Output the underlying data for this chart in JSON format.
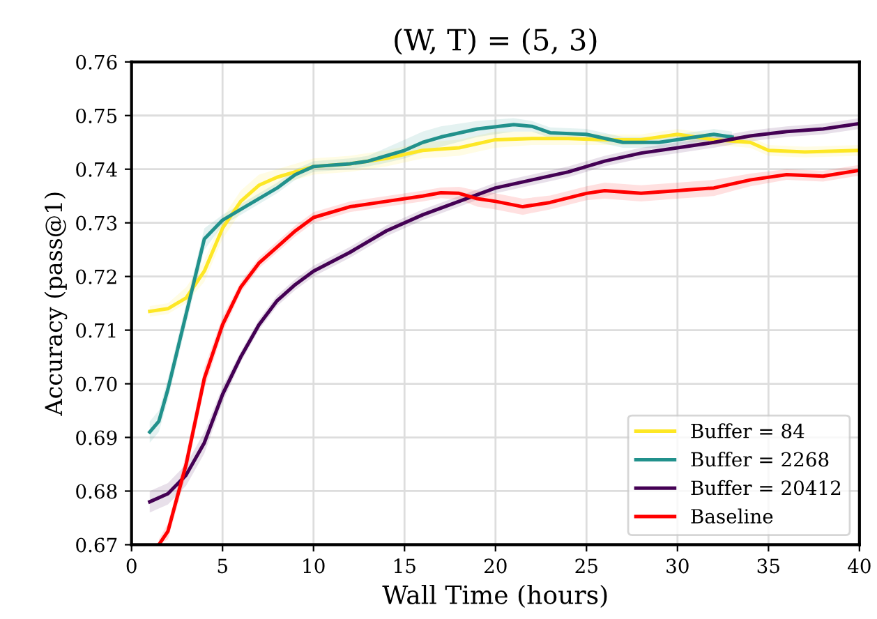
{
  "chart_data": {
    "type": "line",
    "title": "(W, T) = (5, 3)",
    "xlabel": "Wall Time (hours)",
    "ylabel": "Accuracy (pass@1)",
    "xlim": [
      0,
      40
    ],
    "ylim": [
      0.67,
      0.76
    ],
    "xticks": [
      0,
      5,
      10,
      15,
      20,
      25,
      30,
      35,
      40
    ],
    "yticks": [
      {
        "value": 0.67,
        "label": "0.67"
      },
      {
        "value": 0.68,
        "label": "0.68"
      },
      {
        "value": 0.69,
        "label": "0.69"
      },
      {
        "value": 0.7,
        "label": "0.70"
      },
      {
        "value": 0.71,
        "label": "0.71"
      },
      {
        "value": 0.72,
        "label": "0.72"
      },
      {
        "value": 0.73,
        "label": "0.73"
      },
      {
        "value": 0.74,
        "label": "0.74"
      },
      {
        "value": 0.75,
        "label": "0.75"
      },
      {
        "value": 0.76,
        "label": "0.76"
      }
    ],
    "grid": true,
    "legend": "bottom right",
    "marker": "none",
    "line_style": "solid",
    "series": [
      {
        "name": "Buffer = 84",
        "color": "#fde725",
        "x": [
          1,
          2,
          3,
          4,
          5,
          6,
          7,
          8,
          10,
          12,
          14,
          16,
          18,
          20,
          22,
          24,
          26,
          28,
          30,
          32,
          34,
          35,
          37,
          40
        ],
        "values": [
          0.7135,
          0.714,
          0.716,
          0.721,
          0.729,
          0.734,
          0.737,
          0.7385,
          0.7405,
          0.741,
          0.742,
          0.7435,
          0.744,
          0.7455,
          0.7457,
          0.7457,
          0.7455,
          0.7455,
          0.7465,
          0.7455,
          0.745,
          0.7435,
          0.7432,
          0.7435
        ],
        "lower": [
          0.7125,
          0.713,
          0.715,
          0.719,
          0.727,
          0.732,
          0.735,
          0.737,
          0.739,
          0.7395,
          0.7405,
          0.742,
          0.7425,
          0.744,
          0.7445,
          0.7445,
          0.7445,
          0.7445,
          0.7455,
          0.7445,
          0.744,
          0.7425,
          0.7422,
          0.7425
        ],
        "upper": [
          0.7145,
          0.715,
          0.718,
          0.723,
          0.731,
          0.736,
          0.739,
          0.74,
          0.742,
          0.7425,
          0.7435,
          0.745,
          0.7455,
          0.747,
          0.747,
          0.747,
          0.7465,
          0.7465,
          0.7475,
          0.7465,
          0.746,
          0.7445,
          0.7442,
          0.7445
        ]
      },
      {
        "name": "Buffer = 2268",
        "color": "#21918c",
        "x": [
          1,
          1.5,
          2,
          3,
          4,
          5,
          6,
          8,
          9,
          10,
          12,
          13,
          14,
          15,
          16,
          17,
          19,
          21,
          22,
          23,
          25,
          27,
          29,
          31,
          32,
          33
        ],
        "values": [
          0.691,
          0.693,
          0.699,
          0.713,
          0.727,
          0.7305,
          0.7325,
          0.7365,
          0.739,
          0.7405,
          0.741,
          0.7415,
          0.7425,
          0.7435,
          0.745,
          0.746,
          0.7475,
          0.7483,
          0.748,
          0.7468,
          0.7465,
          0.745,
          0.745,
          0.746,
          0.7465,
          0.746
        ],
        "lower": [
          0.689,
          0.691,
          0.697,
          0.711,
          0.725,
          0.7295,
          0.7315,
          0.7355,
          0.738,
          0.7395,
          0.74,
          0.7405,
          0.7412,
          0.742,
          0.7432,
          0.7442,
          0.746,
          0.747,
          0.747,
          0.7458,
          0.7455,
          0.744,
          0.744,
          0.745,
          0.7455,
          0.745
        ],
        "upper": [
          0.693,
          0.695,
          0.701,
          0.715,
          0.729,
          0.7315,
          0.7335,
          0.7375,
          0.74,
          0.7415,
          0.742,
          0.7425,
          0.744,
          0.7455,
          0.747,
          0.748,
          0.749,
          0.7495,
          0.749,
          0.7478,
          0.7475,
          0.746,
          0.746,
          0.747,
          0.7475,
          0.747
        ]
      },
      {
        "name": "Buffer = 20412",
        "color": "#440154",
        "x": [
          1,
          2,
          3,
          4,
          5,
          6,
          7,
          8,
          9,
          10,
          12,
          14,
          16,
          18,
          20,
          22,
          24,
          26,
          28,
          30,
          32,
          34,
          36,
          38,
          40
        ],
        "values": [
          0.678,
          0.6795,
          0.683,
          0.689,
          0.698,
          0.705,
          0.711,
          0.7155,
          0.7185,
          0.721,
          0.7245,
          0.7285,
          0.7315,
          0.734,
          0.7365,
          0.738,
          0.7395,
          0.7415,
          0.743,
          0.744,
          0.745,
          0.7462,
          0.747,
          0.7475,
          0.7485
        ],
        "lower": [
          0.676,
          0.6775,
          0.681,
          0.687,
          0.6965,
          0.704,
          0.71,
          0.7145,
          0.7175,
          0.72,
          0.7235,
          0.7275,
          0.7305,
          0.733,
          0.7355,
          0.737,
          0.7385,
          0.7405,
          0.742,
          0.743,
          0.744,
          0.7452,
          0.746,
          0.7465,
          0.7475
        ],
        "upper": [
          0.68,
          0.6815,
          0.685,
          0.691,
          0.6995,
          0.706,
          0.712,
          0.7165,
          0.7195,
          0.722,
          0.7255,
          0.7295,
          0.7325,
          0.735,
          0.7375,
          0.739,
          0.7405,
          0.7425,
          0.744,
          0.745,
          0.746,
          0.7472,
          0.748,
          0.7485,
          0.7495
        ]
      },
      {
        "name": "Baseline",
        "color": "#ff0000",
        "x": [
          1.5,
          2,
          3,
          4,
          5,
          6,
          7,
          8,
          9,
          10,
          12,
          14,
          16,
          17,
          18,
          19,
          20,
          21.5,
          23,
          25,
          26,
          28,
          30,
          32,
          34,
          36,
          38,
          40
        ],
        "values": [
          0.67,
          0.6725,
          0.685,
          0.701,
          0.711,
          0.718,
          0.7225,
          0.7255,
          0.7285,
          0.731,
          0.733,
          0.734,
          0.735,
          0.7356,
          0.7355,
          0.7345,
          0.734,
          0.733,
          0.7338,
          0.7355,
          0.736,
          0.7355,
          0.736,
          0.7365,
          0.738,
          0.739,
          0.7387,
          0.7398
        ],
        "lower": [
          0.67,
          0.671,
          0.683,
          0.699,
          0.7095,
          0.717,
          0.7215,
          0.7245,
          0.7275,
          0.73,
          0.732,
          0.733,
          0.734,
          0.7346,
          0.7343,
          0.733,
          0.7325,
          0.7315,
          0.7325,
          0.7342,
          0.7345,
          0.734,
          0.7345,
          0.735,
          0.7368,
          0.738,
          0.7377,
          0.7388
        ],
        "upper": [
          0.671,
          0.674,
          0.687,
          0.703,
          0.7125,
          0.719,
          0.7235,
          0.7265,
          0.7295,
          0.732,
          0.734,
          0.735,
          0.736,
          0.7366,
          0.7367,
          0.736,
          0.7355,
          0.7345,
          0.7351,
          0.7368,
          0.7375,
          0.737,
          0.7375,
          0.738,
          0.7392,
          0.74,
          0.7397,
          0.7408
        ]
      }
    ]
  }
}
